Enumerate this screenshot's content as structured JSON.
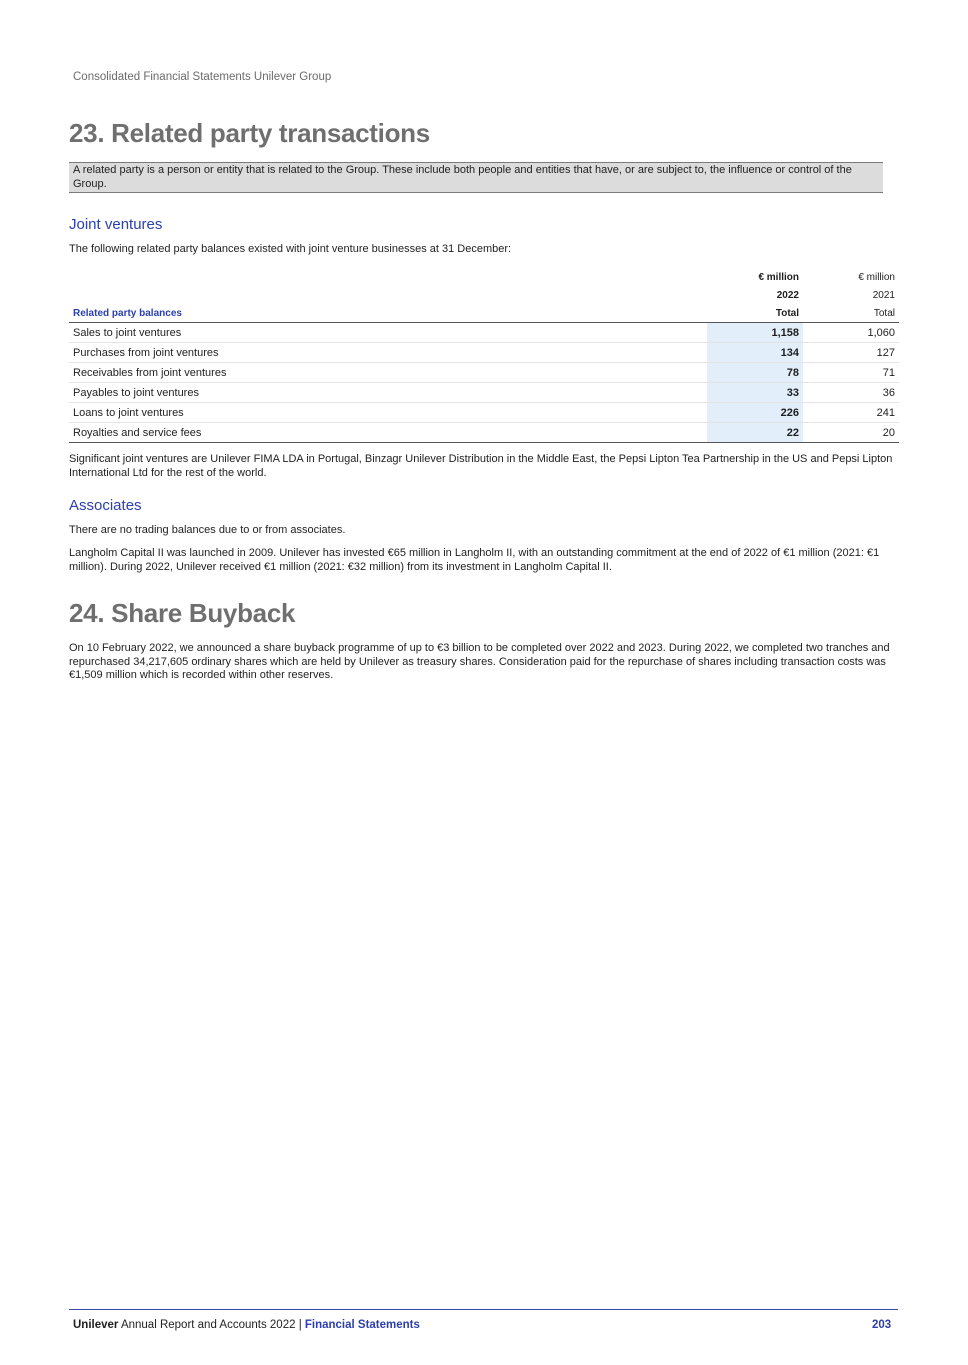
{
  "header": {
    "running_title": "Consolidated Financial Statements Unilever Group"
  },
  "section23": {
    "title": "23. Related party transactions",
    "intro": "A related party is a person or entity that is related to the Group. These include both people and entities that have, or are subject to, the influence or control of the Group.",
    "joint_ventures": {
      "heading": "Joint ventures",
      "lead": "The following related party balances existed with joint venture businesses at 31 December:",
      "table": {
        "columns": [
          {
            "unit": "€ million",
            "year": "2022",
            "label": "Total"
          },
          {
            "unit": "€ million",
            "year": "2021",
            "label": "Total"
          }
        ],
        "row_header": "Related party balances",
        "rows": [
          {
            "label": "Sales to joint ventures",
            "v2022": "1,158",
            "v2021": "1,060"
          },
          {
            "label": "Purchases from joint ventures",
            "v2022": "134",
            "v2021": "127"
          },
          {
            "label": "Receivables from joint ventures",
            "v2022": "78",
            "v2021": "71"
          },
          {
            "label": "Payables to joint ventures",
            "v2022": "33",
            "v2021": "36"
          },
          {
            "label": "Loans to joint ventures",
            "v2022": "226",
            "v2021": "241"
          },
          {
            "label": "Royalties and service fees",
            "v2022": "22",
            "v2021": "20"
          }
        ]
      },
      "note": "Significant joint ventures are Unilever FIMA LDA in Portugal, Binzagr Unilever Distribution in the Middle East, the Pepsi Lipton Tea Partnership in the US and Pepsi Lipton International Ltd for the rest of the world."
    },
    "associates": {
      "heading": "Associates",
      "p1": "There are no trading balances due to or from associates.",
      "p2": "Langholm Capital II was launched in 2009. Unilever has invested €65 million in Langholm II, with an outstanding commitment at the end of 2022 of €1 million (2021: €1 million). During 2022, Unilever received €1 million (2021: €32 million) from its investment in Langholm Capital II."
    }
  },
  "section24": {
    "title": "24. Share Buyback",
    "body": "On 10 February 2022, we announced a share buyback programme of up to €3 billion to be completed over 2022 and 2023. During 2022, we completed two tranches and repurchased 34,217,605 ordinary shares which are held by Unilever as treasury shares. Consideration paid for the repurchase of shares including transaction costs was €1,509 million which is recorded within other reserves."
  },
  "footer": {
    "brand": "Unilever",
    "report": " Annual Report and Accounts 2022 | ",
    "section": "Financial Statements",
    "page": "203"
  },
  "colors": {
    "accent": "#2b3fae",
    "heading_grey": "#6f6f6f",
    "highlight_column": "#e3eefb",
    "intro_box": "#dcdcdc"
  }
}
